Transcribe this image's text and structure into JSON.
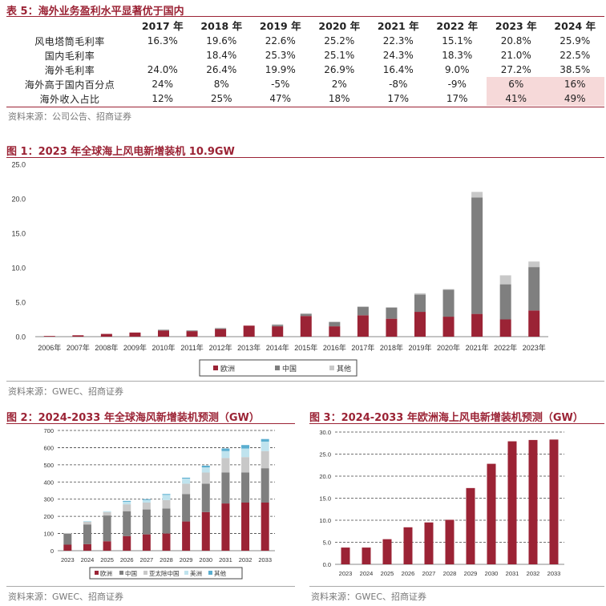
{
  "table5": {
    "title": "表 5：海外业务盈利水平显著优于国内",
    "years": [
      "2017 年",
      "2018 年",
      "2019 年",
      "2020 年",
      "2021 年",
      "2022 年",
      "2023 年",
      "2024 年"
    ],
    "rows": [
      {
        "label": "风电塔筒毛利率",
        "values": [
          "16.3%",
          "19.6%",
          "22.6%",
          "25.2%",
          "22.3%",
          "15.1%",
          "20.8%",
          "25.9%"
        ],
        "highlight": false
      },
      {
        "label": "国内毛利率",
        "values": [
          "",
          "18.4%",
          "25.3%",
          "25.1%",
          "24.3%",
          "18.3%",
          "21.0%",
          "22.5%"
        ],
        "highlight": false
      },
      {
        "label": "海外毛利率",
        "values": [
          "24.0%",
          "26.4%",
          "19.9%",
          "26.9%",
          "16.4%",
          "9.0%",
          "27.2%",
          "38.5%"
        ],
        "highlight": false
      },
      {
        "label": "海外高于国内百分点",
        "values": [
          "24%",
          "8%",
          "-5%",
          "2%",
          "-8%",
          "-9%",
          "6%",
          "16%"
        ],
        "highlight": true
      },
      {
        "label": "海外收入占比",
        "values": [
          "12%",
          "25%",
          "47%",
          "18%",
          "17%",
          "17%",
          "41%",
          "49%"
        ],
        "highlight": true
      }
    ],
    "source": "资料来源：公司公告、招商证券"
  },
  "fig1_source": "资料来源：GWEC、招商证券",
  "fig2_source": "资料来源：GWEC、招商证券",
  "fig3_source": "资料来源：GWEC、招商证券",
  "colors": {
    "europe": "#9b2335",
    "china": "#7f7f7f",
    "apac": "#c8c8c8",
    "americas": "#bfe3ee",
    "other": "#5aaed0"
  },
  "chart_data": [
    {
      "type": "bar",
      "stacked": true,
      "title": "图 1：2023 年全球海上风电新增装机 10.9GW",
      "categories": [
        "2006年",
        "2007年",
        "2008年",
        "2009年",
        "2010年",
        "2011年",
        "2012年",
        "2013年",
        "2014年",
        "2015年",
        "2016年",
        "2017年",
        "2018年",
        "2019年",
        "2020年",
        "2021年",
        "2022年",
        "2023年"
      ],
      "series": [
        {
          "name": "欧洲",
          "values": [
            0.1,
            0.2,
            0.4,
            0.6,
            0.9,
            0.8,
            1.1,
            1.6,
            1.5,
            3.0,
            1.5,
            3.1,
            2.6,
            3.6,
            2.9,
            3.3,
            2.5,
            3.8
          ]
        },
        {
          "name": "中国",
          "values": [
            0,
            0,
            0,
            0,
            0.1,
            0.1,
            0.1,
            0,
            0.2,
            0.3,
            0.6,
            1.2,
            1.6,
            2.5,
            3.9,
            16.9,
            5.1,
            6.3
          ]
        },
        {
          "name": "其他",
          "values": [
            0,
            0,
            0,
            0,
            0,
            0,
            0.1,
            0,
            0.1,
            0.1,
            0.1,
            0.1,
            0.1,
            0.2,
            0.1,
            0.8,
            1.3,
            0.8
          ]
        }
      ],
      "ylim": [
        0,
        25
      ],
      "yticks": [
        "0.0",
        "5.0",
        "10.0",
        "15.0",
        "20.0",
        "25.0"
      ],
      "legend_position": "bottom"
    },
    {
      "type": "bar",
      "stacked": true,
      "title": "图 2：2024-2033 年全球海风新增装机预测（GW）",
      "categories": [
        "2023",
        "2024",
        "2025",
        "2026",
        "2027",
        "2028",
        "2029",
        "2030",
        "2031",
        "2032",
        "2033"
      ],
      "series": [
        {
          "name": "欧洲",
          "values": [
            35,
            38,
            55,
            85,
            95,
            100,
            170,
            225,
            275,
            280,
            280
          ]
        },
        {
          "name": "中国",
          "values": [
            63,
            115,
            150,
            145,
            145,
            145,
            160,
            165,
            180,
            175,
            200
          ]
        },
        {
          "name": "亚太除中国",
          "values": [
            5,
            15,
            20,
            40,
            40,
            50,
            60,
            65,
            85,
            90,
            100
          ]
        },
        {
          "name": "美洲",
          "values": [
            0,
            5,
            5,
            15,
            15,
            30,
            30,
            30,
            40,
            50,
            55
          ]
        },
        {
          "name": "其他",
          "values": [
            0,
            0,
            0,
            5,
            5,
            5,
            5,
            10,
            15,
            20,
            15
          ]
        }
      ],
      "ylim": [
        0,
        700
      ],
      "yticks": [
        "0",
        "100",
        "200",
        "300",
        "400",
        "500",
        "600",
        "700"
      ],
      "legend_position": "bottom"
    },
    {
      "type": "bar",
      "title": "图 3：2024-2033 年欧洲海上风电新增装机预测（GW）",
      "categories": [
        "2023",
        "2024",
        "2025",
        "2026",
        "2027",
        "2028",
        "2029",
        "2030",
        "2031",
        "2032",
        "2033"
      ],
      "series": [
        {
          "name": "欧洲",
          "values": [
            3.8,
            3.8,
            5.7,
            8.4,
            9.5,
            10.1,
            17.3,
            22.8,
            27.9,
            28.2,
            28.3
          ]
        }
      ],
      "ylim": [
        0,
        30
      ],
      "yticks": [
        "0.0",
        "5.0",
        "10.0",
        "15.0",
        "20.0",
        "25.0",
        "30.0"
      ]
    }
  ]
}
